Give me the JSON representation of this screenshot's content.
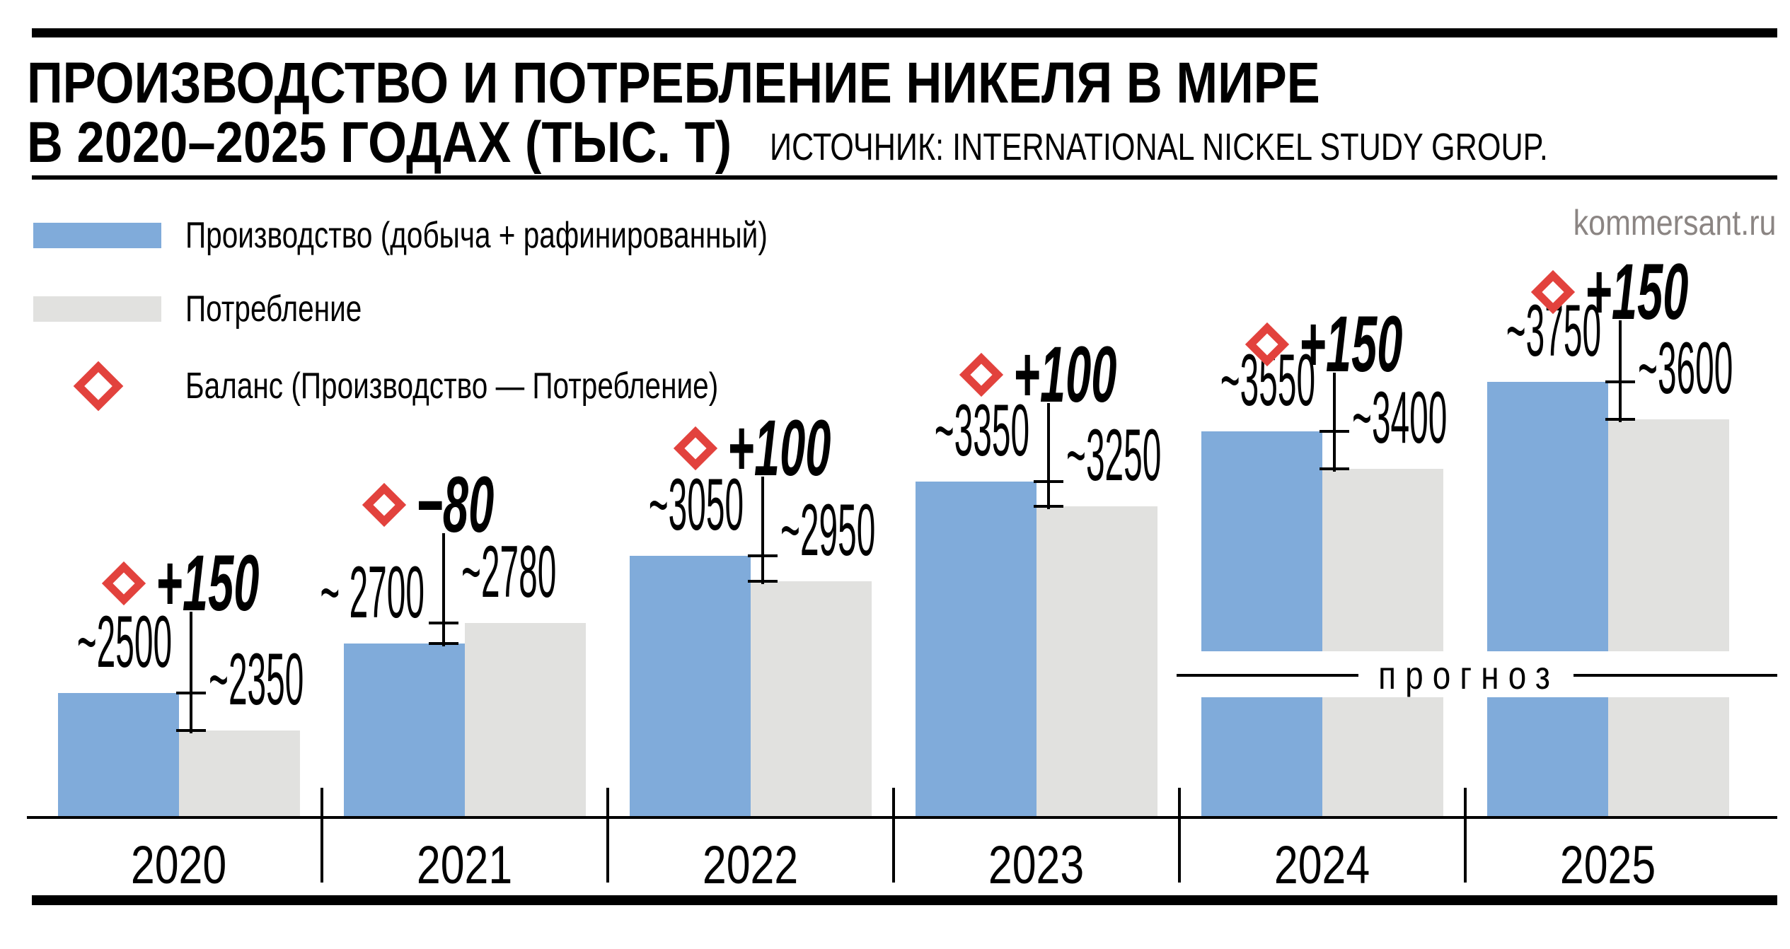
{
  "header": {
    "title_line1": "ПРОИЗВОДСТВО И ПОТРЕБЛЕНИЕ НИКЕЛЯ В МИРЕ",
    "title_line2": "В 2020–2025 ГОДАХ (ТЫС. Т)",
    "source": "ИСТОЧНИК: INTERNATIONAL NICKEL STUDY GROUP.",
    "site": "kommersant.ru"
  },
  "legend": {
    "production_label": "Производство (добыча + рафинированный)",
    "consumption_label": "Потребление",
    "balance_label": "Баланс (Производство — Потребление)"
  },
  "colors": {
    "production": "#80abda",
    "consumption": "#e1e1df",
    "balance": "#e2423d",
    "site_text": "#8b8583",
    "ink": "#000000"
  },
  "chart_data": {
    "type": "bar",
    "title": "Производство и потребление никеля в мире в 2020–2025 годах (тыс. т)",
    "unit": "тыс. т",
    "categories": [
      "2020",
      "2021",
      "2022",
      "2023",
      "2024",
      "2025"
    ],
    "series": [
      {
        "name": "Производство (добыча + рафинированный)",
        "values": [
          2500,
          2700,
          3050,
          3350,
          3550,
          3750
        ],
        "labels": [
          "~2500",
          "~ 2700",
          "~3050",
          "~3350",
          "~3550",
          "~3750"
        ]
      },
      {
        "name": "Потребление",
        "values": [
          2350,
          2780,
          2950,
          3250,
          3400,
          3600
        ],
        "labels": [
          "~2350",
          "~2780",
          "~2950",
          "~3250",
          "~3400",
          "~3600"
        ]
      }
    ],
    "balance": {
      "name": "Баланс (Производство — Потребление)",
      "values": [
        150,
        -80,
        100,
        100,
        150,
        150
      ],
      "labels": [
        "+150",
        "−80",
        "+100",
        "+100",
        "+150",
        "+150"
      ]
    },
    "forecast_label": "прогноз",
    "forecast_years": [
      "2024",
      "2025"
    ],
    "approx_prefix": "~",
    "ylim": [
      2000,
      3800
    ],
    "grid": false,
    "legend_position": "top-left"
  }
}
